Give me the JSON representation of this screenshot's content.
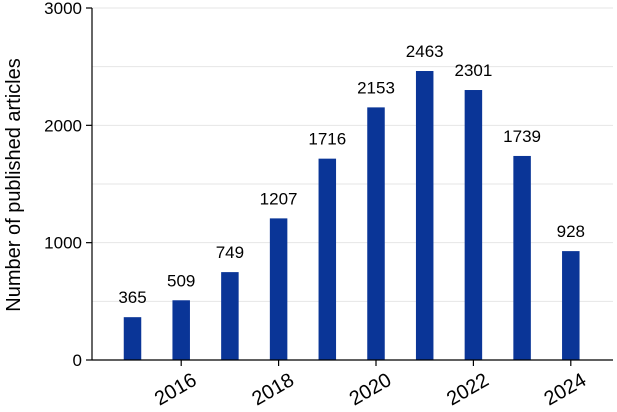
{
  "chart_data": {
    "type": "bar",
    "categories": [
      "2015",
      "2016",
      "2017",
      "2018",
      "2019",
      "2020",
      "2021",
      "2022",
      "2023",
      "2024"
    ],
    "values": [
      365,
      509,
      749,
      1207,
      1716,
      2153,
      2463,
      2301,
      1739,
      928
    ],
    "data_labels": [
      "365",
      "509",
      "749",
      "1207",
      "1716",
      "2153",
      "2463",
      "2301",
      "1739",
      "928"
    ],
    "x_tick_labels": [
      "2016",
      "2018",
      "2020",
      "2022",
      "2024"
    ],
    "x_tick_years": [
      2016,
      2018,
      2020,
      2022,
      2024
    ],
    "y_ticks": [
      0,
      1000,
      2000,
      3000
    ],
    "y_tick_labels": [
      "0",
      "1000",
      "2000",
      "3000"
    ],
    "ylim": [
      0,
      3000
    ],
    "ylabel": "Number of published articles",
    "xlabel": "",
    "title": "",
    "grid": true,
    "bar_color": "#0a3597"
  }
}
